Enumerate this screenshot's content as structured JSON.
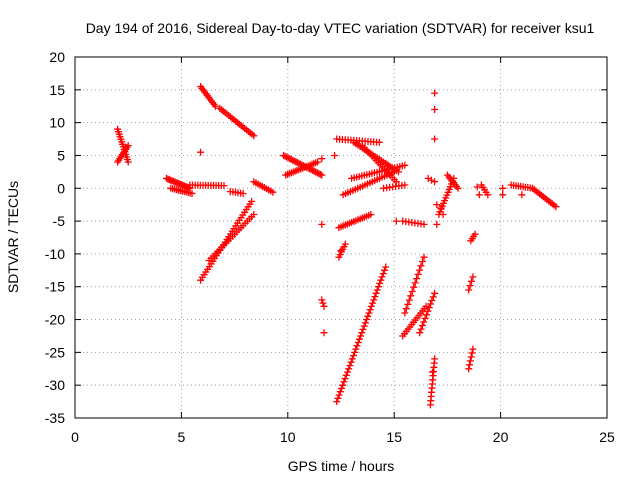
{
  "chart_data": {
    "type": "scatter",
    "title": "Day 194 of 2016, Sidereal Day-to-day VTEC variation (SDTVAR) for receiver ksu1",
    "xlabel": "GPS time / hours",
    "ylabel": "SDTVAR / TECUs",
    "xlim": [
      0,
      25
    ],
    "ylim": [
      -35,
      20
    ],
    "xticks": [
      0,
      5,
      10,
      15,
      20,
      25
    ],
    "yticks": [
      20,
      15,
      10,
      5,
      0,
      -5,
      -10,
      -15,
      -20,
      -25,
      -30,
      -35
    ],
    "grid": true,
    "marker": "+",
    "color": "#ff0000",
    "segments": [
      {
        "start": [
          2.0,
          9.0
        ],
        "end": [
          2.5,
          4.0
        ],
        "count": 14
      },
      {
        "start": [
          2.0,
          4.0
        ],
        "end": [
          2.5,
          6.5
        ],
        "count": 10
      },
      {
        "start": [
          4.3,
          1.5
        ],
        "end": [
          5.4,
          0.0
        ],
        "count": 18
      },
      {
        "start": [
          4.5,
          0.0
        ],
        "end": [
          5.5,
          -0.8
        ],
        "count": 12
      },
      {
        "start": [
          5.4,
          0.5
        ],
        "end": [
          7.0,
          0.4
        ],
        "count": 14
      },
      {
        "start": [
          5.9,
          15.5
        ],
        "end": [
          6.6,
          12.5
        ],
        "count": 12
      },
      {
        "start": [
          6.8,
          12.2
        ],
        "end": [
          8.4,
          8.0
        ],
        "count": 20
      },
      {
        "start": [
          5.9,
          -14.0
        ],
        "end": [
          8.3,
          -2.0
        ],
        "count": 30
      },
      {
        "start": [
          6.3,
          -11.0
        ],
        "end": [
          8.4,
          -4.0
        ],
        "count": 22
      },
      {
        "start": [
          7.3,
          -0.5
        ],
        "end": [
          7.9,
          -0.8
        ],
        "count": 6
      },
      {
        "start": [
          8.4,
          1.0
        ],
        "end": [
          9.3,
          -0.6
        ],
        "count": 10
      },
      {
        "start": [
          9.8,
          5.0
        ],
        "end": [
          11.6,
          2.0
        ],
        "count": 26
      },
      {
        "start": [
          9.9,
          2.0
        ],
        "end": [
          11.4,
          4.0
        ],
        "count": 18
      },
      {
        "start": [
          12.3,
          7.5
        ],
        "end": [
          14.3,
          7.0
        ],
        "count": 16
      },
      {
        "start": [
          13.1,
          7.0
        ],
        "end": [
          15.2,
          2.5
        ],
        "count": 22
      },
      {
        "start": [
          13.5,
          6.5
        ],
        "end": [
          15.1,
          1.0
        ],
        "count": 18
      },
      {
        "start": [
          13.0,
          1.5
        ],
        "end": [
          15.5,
          3.5
        ],
        "count": 22
      },
      {
        "start": [
          12.6,
          -1.0
        ],
        "end": [
          15.0,
          2.5
        ],
        "count": 22
      },
      {
        "start": [
          14.5,
          0.0
        ],
        "end": [
          15.5,
          0.5
        ],
        "count": 8
      },
      {
        "start": [
          12.4,
          -6.0
        ],
        "end": [
          13.9,
          -4.0
        ],
        "count": 16
      },
      {
        "start": [
          12.4,
          -10.5
        ],
        "end": [
          12.7,
          -8.5
        ],
        "count": 6
      },
      {
        "start": [
          11.6,
          -17.0
        ],
        "end": [
          11.7,
          -18.0
        ],
        "count": 3
      },
      {
        "start": [
          12.3,
          -32.5
        ],
        "end": [
          14.6,
          -12.0
        ],
        "count": 42
      },
      {
        "start": [
          15.4,
          -5.0
        ],
        "end": [
          16.4,
          -5.5
        ],
        "count": 8
      },
      {
        "start": [
          15.4,
          -22.5
        ],
        "end": [
          16.5,
          -18.0
        ],
        "count": 14
      },
      {
        "start": [
          15.5,
          -19.0
        ],
        "end": [
          16.4,
          -10.5
        ],
        "count": 14
      },
      {
        "start": [
          16.2,
          -22.0
        ],
        "end": [
          16.9,
          -16.0
        ],
        "count": 12
      },
      {
        "start": [
          16.7,
          -33.0
        ],
        "end": [
          16.9,
          -26.0
        ],
        "count": 12
      },
      {
        "start": [
          16.6,
          1.5
        ],
        "end": [
          16.9,
          1.0
        ],
        "count": 3
      },
      {
        "start": [
          17.1,
          -4.0
        ],
        "end": [
          17.8,
          1.5
        ],
        "count": 14
      },
      {
        "start": [
          17.5,
          2.0
        ],
        "end": [
          18.0,
          0.0
        ],
        "count": 8
      },
      {
        "start": [
          18.6,
          -8.0
        ],
        "end": [
          18.8,
          -7.0
        ],
        "count": 4
      },
      {
        "start": [
          18.5,
          -15.5
        ],
        "end": [
          18.7,
          -13.5
        ],
        "count": 4
      },
      {
        "start": [
          18.5,
          -27.5
        ],
        "end": [
          18.7,
          -24.5
        ],
        "count": 6
      },
      {
        "start": [
          19.1,
          0.5
        ],
        "end": [
          19.4,
          -1.0
        ],
        "count": 5
      },
      {
        "start": [
          20.5,
          0.5
        ],
        "end": [
          21.5,
          0.0
        ],
        "count": 10
      },
      {
        "start": [
          21.5,
          0.0
        ],
        "end": [
          22.6,
          -2.8
        ],
        "count": 14
      }
    ],
    "points": [
      [
        11.6,
        -5.5
      ],
      [
        11.7,
        -22.0
      ],
      [
        12.2,
        5.0
      ],
      [
        11.6,
        4.5
      ],
      [
        16.9,
        14.5
      ],
      [
        16.9,
        12.0
      ],
      [
        16.9,
        7.5
      ],
      [
        17.0,
        -5.5
      ],
      [
        17.0,
        -2.5
      ],
      [
        17.3,
        -4.0
      ],
      [
        15.1,
        -5.0
      ],
      [
        5.9,
        5.5
      ],
      [
        19.0,
        -1.0
      ],
      [
        20.1,
        -1.0
      ],
      [
        20.1,
        0.0
      ],
      [
        18.9,
        0.2
      ],
      [
        21.0,
        -1.0
      ],
      [
        17.2,
        -3.0
      ],
      [
        12.5,
        -9.5
      ],
      [
        16.8,
        -28.0
      ]
    ]
  }
}
